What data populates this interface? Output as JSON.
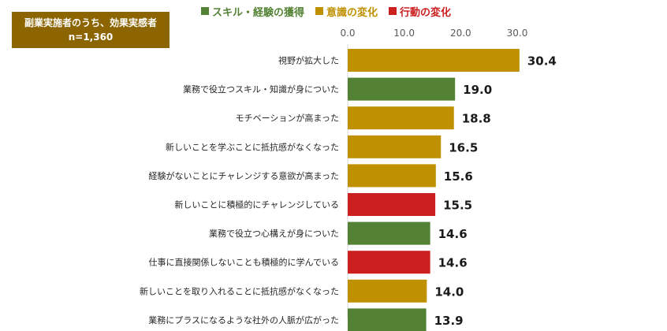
{
  "info_box": {
    "line1": "副業実施者のうち、効果実感者",
    "line2": "n=1,360"
  },
  "legend": [
    {
      "name": "スキル・経験の獲得",
      "color": "#548235"
    },
    {
      "name": "意識の変化",
      "color": "#bf9000"
    },
    {
      "name": "行動の変化",
      "color": "#cc1f1f"
    }
  ],
  "chart_data": {
    "type": "bar",
    "orientation": "horizontal",
    "xlim": [
      0,
      30
    ],
    "ticks": [
      "0.0",
      "10.0",
      "20.0",
      "30.0"
    ],
    "grid": false,
    "legend_position": "top",
    "categories": [
      "視野が拡大した",
      "業務で役立つスキル・知識が身についた",
      "モチベーションが高まった",
      "新しいことを学ぶことに抵抗感がなくなった",
      "経験がないことにチャレンジする意欲が高まった",
      "新しいことに積極的にチャレンジしている",
      "業務で役立つ心構えが身についた",
      "仕事に直接関係しないことも積極的に学んでいる",
      "新しいことを取り入れることに抵抗感がなくなった",
      "業務にプラスになるような社外の人脈が広がった"
    ],
    "values": [
      30.4,
      19.0,
      18.8,
      16.5,
      15.6,
      15.5,
      14.6,
      14.6,
      14.0,
      13.9
    ],
    "value_labels": [
      "30.4",
      "19.0",
      "18.8",
      "16.5",
      "15.6",
      "15.5",
      "14.6",
      "14.6",
      "14.0",
      "13.9"
    ],
    "groups": [
      "意識の変化",
      "スキル・経験の獲得",
      "意識の変化",
      "意識の変化",
      "意識の変化",
      "行動の変化",
      "スキル・経験の獲得",
      "行動の変化",
      "意識の変化",
      "スキル・経験の獲得"
    ]
  }
}
